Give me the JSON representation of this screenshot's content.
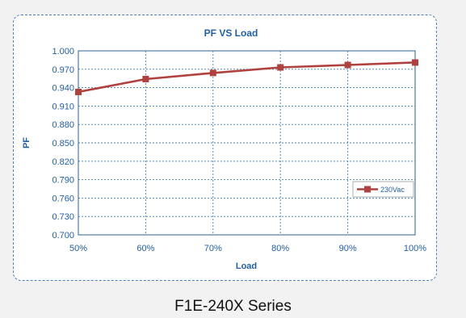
{
  "caption": "F1E-240X Series",
  "colors": {
    "series": "#b0413e",
    "axis_text": "#1f5fa8",
    "grid": "#3c7fb8",
    "frame": "#4a7fc1"
  },
  "chart_data": {
    "type": "line",
    "title": "PF  VS  Load",
    "xlabel": "Load",
    "ylabel": "PF",
    "x": [
      "50%",
      "60%",
      "70%",
      "80%",
      "90%",
      "100%"
    ],
    "x_ticks": [
      "50%",
      "60%",
      "70%",
      "80%",
      "90%",
      "100%"
    ],
    "y_ticks": [
      "0.700",
      "0.730",
      "0.760",
      "0.790",
      "0.820",
      "0.850",
      "0.880",
      "0.910",
      "0.940",
      "0.970",
      "1.000"
    ],
    "ylim": [
      0.7,
      1.0
    ],
    "grid": true,
    "grid_style": "dashed",
    "legend_position": "right",
    "series": [
      {
        "name": "230Vac",
        "marker": "square",
        "values": [
          0.933,
          0.954,
          0.964,
          0.973,
          0.977,
          0.981
        ]
      }
    ]
  }
}
